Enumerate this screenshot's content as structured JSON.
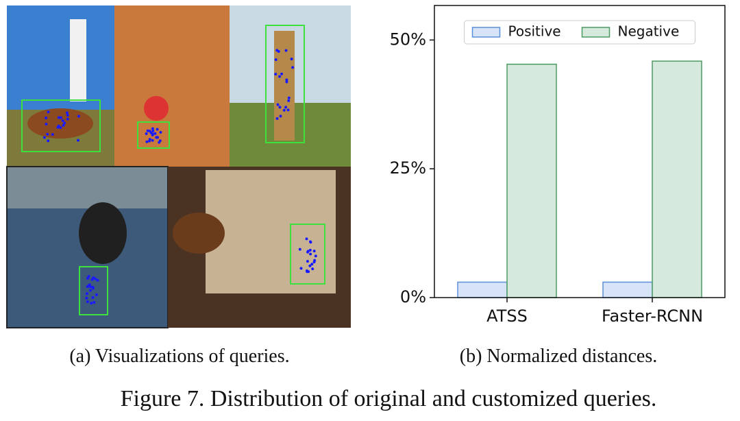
{
  "chart_data": {
    "type": "bar",
    "categories": [
      "ATSS",
      "Faster-RCNN"
    ],
    "series": [
      {
        "name": "Positive",
        "color": "#d7e3f6",
        "edgecolor": "#5b8fd9",
        "values": [
          3.0,
          3.0
        ]
      },
      {
        "name": "Negative",
        "color": "#d5eadc",
        "edgecolor": "#4c9a62",
        "values": [
          45.3,
          45.9
        ]
      }
    ],
    "ylim": [
      0,
      56.7
    ],
    "yticks": [
      {
        "value": 0,
        "label": "0%"
      },
      {
        "value": 25,
        "label": "25%"
      },
      {
        "value": 50,
        "label": "50%"
      }
    ],
    "legend": "upper center"
  },
  "captions": {
    "left": "(a) Visualizations of queries.",
    "right": "(b) Normalized distances.",
    "figure": "Figure 7. Distribution of original and customized queries."
  }
}
